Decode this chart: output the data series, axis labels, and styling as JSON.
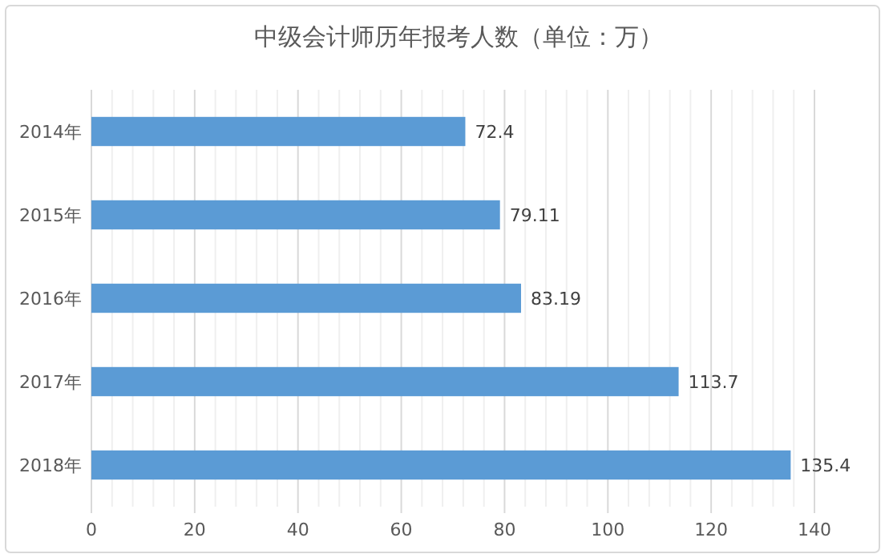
{
  "chart_data": {
    "type": "bar",
    "orientation": "horizontal",
    "title": "中级会计师历年报考人数（单位：万）",
    "categories": [
      "2014年",
      "2015年",
      "2016年",
      "2017年",
      "2018年"
    ],
    "values": [
      72.4,
      79.11,
      83.19,
      113.7,
      135.4
    ],
    "color": "#5b9bd5",
    "data_labels": true,
    "grid": "x",
    "xlim": [
      0,
      140
    ],
    "xticks": [
      0,
      {
        "value": 4,
        "label": null
      },
      {
        "value": 8,
        "label": null
      },
      {
        "value": 12,
        "label": null
      },
      {
        "value": 16,
        "label": null
      },
      20,
      {
        "value": 24,
        "label": null
      },
      {
        "value": 28,
        "label": null
      },
      {
        "value": 32,
        "label": null
      },
      {
        "value": 36,
        "label": null
      },
      40,
      {
        "value": 44,
        "label": null
      },
      {
        "value": 48,
        "label": null
      },
      {
        "value": 52,
        "label": null
      },
      {
        "value": 56,
        "label": null
      },
      60,
      {
        "value": 64,
        "label": null
      },
      {
        "value": 68,
        "label": null
      },
      {
        "value": 72,
        "label": null
      },
      {
        "value": 76,
        "label": null
      },
      80,
      {
        "value": 84,
        "label": null
      },
      {
        "value": 88,
        "label": null
      },
      {
        "value": 92,
        "label": null
      },
      {
        "value": 96,
        "label": null
      },
      100,
      {
        "value": 104,
        "label": null
      },
      {
        "value": 108,
        "label": null
      },
      {
        "value": 112,
        "label": null
      },
      {
        "value": 116,
        "label": null
      },
      120,
      {
        "value": 124,
        "label": null
      },
      {
        "value": 128,
        "label": null
      },
      {
        "value": 132,
        "label": null
      },
      {
        "value": 136,
        "label": null
      },
      140
    ]
  }
}
